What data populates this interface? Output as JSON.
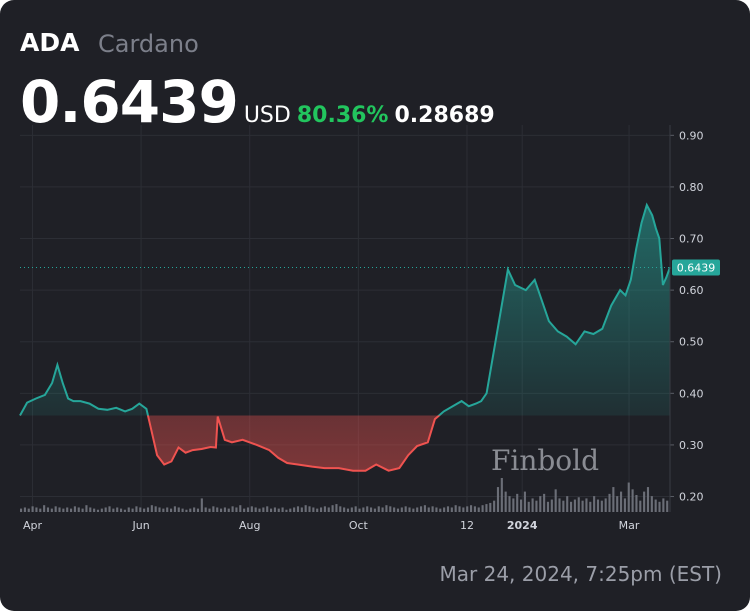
{
  "header": {
    "symbol": "ADA",
    "name": "Cardano",
    "price": "0.6439",
    "currency": "USD",
    "change_pct": "80.36%",
    "change_abs": "0.28689"
  },
  "timestamp": "Mar 24, 2024, 7:25pm (EST)",
  "watermark": "Finbold",
  "chart_data": {
    "type": "area",
    "title": "",
    "xlabel": "",
    "ylabel": "",
    "ylim": [
      0.17,
      0.92
    ],
    "yticks": [
      "0.90",
      "0.80",
      "0.70",
      "0.60",
      "0.50",
      "0.40",
      "0.30",
      "0.20"
    ],
    "xticks": [
      {
        "label": "Apr",
        "date": "2023-04-01"
      },
      {
        "label": "Jun",
        "date": "2023-06-01"
      },
      {
        "label": "Aug",
        "date": "2023-08-01"
      },
      {
        "label": "Oct",
        "date": "2023-10-01"
      },
      {
        "label": "12",
        "date": "2023-12-01"
      },
      {
        "label": "2024",
        "date": "2024-01-01"
      },
      {
        "label": "Mar",
        "date": "2024-03-01"
      }
    ],
    "x_range": [
      "2023-03-25",
      "2024-03-24"
    ],
    "baseline_value": 0.357,
    "current_value": 0.6439,
    "current_label": "0.6439",
    "colors": {
      "up": "#26a69a",
      "down": "#ef5350",
      "grid": "#2c2e35",
      "axis_text": "#d1d4dc"
    },
    "grid": true,
    "series": [
      {
        "x": [
          "2023-03-25",
          "2023-03-29",
          "2023-04-03",
          "2023-04-08",
          "2023-04-12",
          "2023-04-15",
          "2023-04-18",
          "2023-04-21",
          "2023-04-24",
          "2023-04-28",
          "2023-05-03",
          "2023-05-08",
          "2023-05-13",
          "2023-05-18",
          "2023-05-23",
          "2023-05-27",
          "2023-05-31",
          "2023-06-04",
          "2023-06-06",
          "2023-06-10",
          "2023-06-14",
          "2023-06-18",
          "2023-06-22",
          "2023-06-26",
          "2023-06-30",
          "2023-07-05",
          "2023-07-10",
          "2023-07-13",
          "2023-07-14",
          "2023-07-18",
          "2023-07-22",
          "2023-07-28",
          "2023-08-05",
          "2023-08-12",
          "2023-08-17",
          "2023-08-22",
          "2023-08-28",
          "2023-09-05",
          "2023-09-12",
          "2023-09-20",
          "2023-09-28",
          "2023-10-05",
          "2023-10-11",
          "2023-10-18",
          "2023-10-24",
          "2023-10-29",
          "2023-11-03",
          "2023-11-09",
          "2023-11-13",
          "2023-11-18",
          "2023-11-23",
          "2023-11-28",
          "2023-12-02",
          "2023-12-06",
          "2023-12-09",
          "2023-12-12",
          "2023-12-15",
          "2023-12-20",
          "2023-12-24",
          "2023-12-28",
          "2024-01-03",
          "2024-01-08",
          "2024-01-12",
          "2024-01-16",
          "2024-01-21",
          "2024-01-26",
          "2024-01-31",
          "2024-02-05",
          "2024-02-10",
          "2024-02-15",
          "2024-02-20",
          "2024-02-25",
          "2024-02-28",
          "2024-03-02",
          "2024-03-05",
          "2024-03-08",
          "2024-03-11",
          "2024-03-14",
          "2024-03-16",
          "2024-03-18",
          "2024-03-20",
          "2024-03-22",
          "2024-03-24"
        ],
        "y": [
          0.357,
          0.382,
          0.39,
          0.397,
          0.42,
          0.455,
          0.42,
          0.39,
          0.385,
          0.385,
          0.38,
          0.37,
          0.368,
          0.372,
          0.365,
          0.37,
          0.38,
          0.37,
          0.34,
          0.28,
          0.262,
          0.268,
          0.295,
          0.285,
          0.29,
          0.292,
          0.296,
          0.295,
          0.355,
          0.31,
          0.305,
          0.31,
          0.3,
          0.29,
          0.275,
          0.265,
          0.262,
          0.258,
          0.255,
          0.255,
          0.25,
          0.25,
          0.262,
          0.25,
          0.255,
          0.28,
          0.298,
          0.305,
          0.35,
          0.365,
          0.375,
          0.385,
          0.375,
          0.38,
          0.385,
          0.4,
          0.46,
          0.56,
          0.64,
          0.61,
          0.6,
          0.62,
          0.58,
          0.54,
          0.52,
          0.51,
          0.495,
          0.52,
          0.515,
          0.525,
          0.57,
          0.6,
          0.59,
          0.62,
          0.68,
          0.73,
          0.765,
          0.745,
          0.72,
          0.7,
          0.61,
          0.625,
          0.644
        ]
      }
    ],
    "volume": [
      3,
      4,
      3,
      5,
      4,
      3,
      6,
      4,
      3,
      5,
      4,
      3,
      4,
      3,
      5,
      4,
      3,
      6,
      4,
      3,
      2,
      3,
      4,
      5,
      3,
      4,
      3,
      2,
      4,
      3,
      5,
      4,
      3,
      4,
      6,
      5,
      4,
      3,
      4,
      3,
      5,
      4,
      3,
      2,
      3,
      4,
      3,
      12,
      4,
      3,
      5,
      4,
      3,
      4,
      3,
      5,
      4,
      6,
      3,
      4,
      5,
      4,
      3,
      4,
      5,
      3,
      4,
      3,
      4,
      2,
      3,
      4,
      5,
      4,
      6,
      5,
      4,
      3,
      4,
      5,
      4,
      6,
      7,
      5,
      4,
      3,
      4,
      5,
      3,
      4,
      5,
      4,
      3,
      5,
      4,
      6,
      5,
      4,
      3,
      4,
      5,
      4,
      3,
      4,
      5,
      6,
      4,
      5,
      4,
      3,
      4,
      5,
      4,
      6,
      5,
      4,
      5,
      6,
      5,
      4,
      6,
      7,
      8,
      10,
      22,
      30,
      18,
      14,
      12,
      16,
      11,
      18,
      9,
      12,
      10,
      14,
      16,
      9,
      11,
      20,
      12,
      10,
      14,
      9,
      11,
      13,
      10,
      12,
      9,
      14,
      11,
      10,
      12,
      16,
      22,
      14,
      18,
      12,
      26,
      20,
      15,
      10,
      18,
      22,
      14,
      11,
      9,
      12,
      10
    ]
  }
}
